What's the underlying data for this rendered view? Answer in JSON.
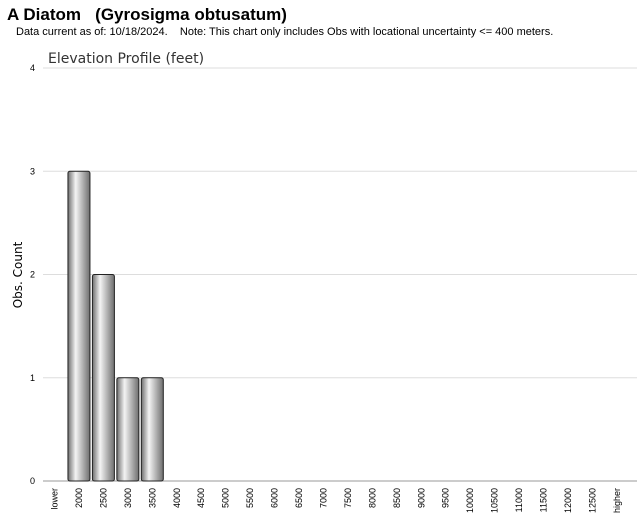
{
  "header": {
    "title": "A Diatom   (Gyrosigma obtusatum)",
    "subtitle": "Data current as of: 10/18/2024.    Note: This chart only includes Obs with locational uncertainty <= 400 meters."
  },
  "colors": {
    "bar_light": "#f4f4f4",
    "bar_dark": "#6e6e6e",
    "bar_stroke": "#222222",
    "gridline": "#dddddd"
  },
  "chart_data": {
    "type": "bar",
    "title": "Elevation Profile (feet)",
    "xlabel": "",
    "ylabel": "Obs. Count",
    "ylim": [
      0,
      4
    ],
    "yticks": [
      0,
      1,
      2,
      3,
      4
    ],
    "grid": true,
    "categories": [
      "lower",
      "2000",
      "2500",
      "3000",
      "3500",
      "4000",
      "4500",
      "5000",
      "5500",
      "6000",
      "6500",
      "7000",
      "7500",
      "8000",
      "8500",
      "9000",
      "9500",
      "10000",
      "10500",
      "11000",
      "11500",
      "12000",
      "12500",
      "higher"
    ],
    "values": [
      0,
      3,
      2,
      1,
      1,
      0,
      0,
      0,
      0,
      0,
      0,
      0,
      0,
      0,
      0,
      0,
      0,
      0,
      0,
      0,
      0,
      0,
      0,
      0
    ]
  }
}
